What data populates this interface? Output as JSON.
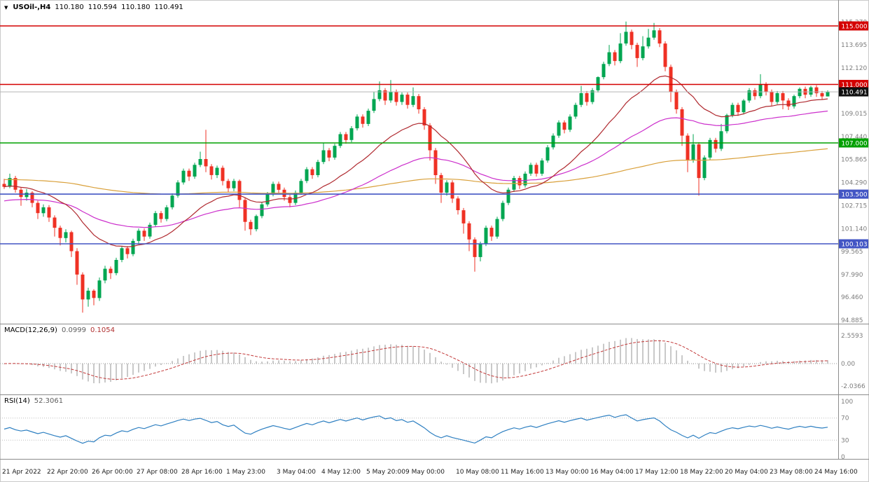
{
  "chart_data": {
    "type": "candlestick",
    "symbol": "USOil-",
    "timeframe": "H4",
    "quote": {
      "symbol_period": "USOil-,H4",
      "open": "110.180",
      "high": "110.594",
      "low": "110.180",
      "close": "110.491"
    },
    "bull_color": "#00a651",
    "bear_color": "#ef3124",
    "price_axis": {
      "labels": [
        115.27,
        113.695,
        112.12,
        110.545,
        109.015,
        107.44,
        105.865,
        104.29,
        102.715,
        101.14,
        99.565,
        97.99,
        96.46,
        94.885
      ]
    },
    "time_axis": {
      "labels": [
        {
          "t": "21 Apr 2022",
          "i": 0
        },
        {
          "t": "22 Apr 20:00",
          "i": 8
        },
        {
          "t": "26 Apr 00:00",
          "i": 16
        },
        {
          "t": "27 Apr 08:00",
          "i": 24
        },
        {
          "t": "28 Apr 16:00",
          "i": 32
        },
        {
          "t": "1 May 23:00",
          "i": 40
        },
        {
          "t": "3 May 04:00",
          "i": 49
        },
        {
          "t": "4 May 12:00",
          "i": 57
        },
        {
          "t": "5 May 20:00",
          "i": 65
        },
        {
          "t": "9 May 00:00",
          "i": 72
        },
        {
          "t": "10 May 08:00",
          "i": 81
        },
        {
          "t": "11 May 16:00",
          "i": 89
        },
        {
          "t": "13 May 00:00",
          "i": 97
        },
        {
          "t": "16 May 04:00",
          "i": 105
        },
        {
          "t": "17 May 12:00",
          "i": 113
        },
        {
          "t": "18 May 22:00",
          "i": 121
        },
        {
          "t": "20 May 04:00",
          "i": 129
        },
        {
          "t": "23 May 08:00",
          "i": 137
        },
        {
          "t": "24 May 16:00",
          "i": 145
        }
      ]
    },
    "levels": [
      {
        "value": 115.0,
        "label": "115.000",
        "color": "#d40000"
      },
      {
        "value": 111.0,
        "label": "111.000",
        "color": "#d40000"
      },
      {
        "value": 107.0,
        "label": "107.000",
        "color": "#00a000"
      },
      {
        "value": 103.5,
        "label": "103.500",
        "color": "#4255c4"
      },
      {
        "value": 100.103,
        "label": "100.103",
        "color": "#4255c4"
      }
    ],
    "current_price": {
      "value": 110.491,
      "label": "110.491",
      "badge_color": "#101010"
    },
    "moving_averages": [
      {
        "name": "ma-slow",
        "method": "ema",
        "period": 200,
        "seed": 104.5,
        "color": "#d9a03a"
      },
      {
        "name": "ma-medium",
        "method": "ema",
        "period": 55,
        "seed": 103.0,
        "color": "#cc2fcc"
      },
      {
        "name": "ma-fast",
        "method": "ema",
        "period": 21,
        "seed": 104.0,
        "color": "#b02a30"
      }
    ],
    "candles": [
      [
        104.2,
        104.55,
        103.85,
        104.0
      ],
      [
        104.0,
        104.9,
        103.9,
        104.6
      ],
      [
        104.6,
        104.75,
        103.6,
        103.8
      ],
      [
        103.8,
        103.95,
        102.7,
        103.3
      ],
      [
        103.3,
        103.85,
        103.05,
        103.6
      ],
      [
        103.6,
        103.7,
        102.6,
        102.9
      ],
      [
        102.9,
        103.05,
        101.8,
        102.2
      ],
      [
        102.2,
        102.8,
        101.95,
        102.6
      ],
      [
        102.6,
        102.75,
        101.6,
        101.9
      ],
      [
        101.9,
        102.05,
        100.6,
        101.2
      ],
      [
        101.2,
        101.35,
        100.0,
        100.5
      ],
      [
        100.5,
        101.1,
        100.2,
        100.9
      ],
      [
        100.9,
        101.0,
        99.2,
        99.6
      ],
      [
        99.6,
        99.8,
        97.3,
        98.0
      ],
      [
        98.0,
        98.15,
        95.4,
        96.3
      ],
      [
        96.3,
        97.1,
        95.8,
        96.9
      ],
      [
        96.9,
        97.0,
        95.9,
        96.4
      ],
      [
        96.4,
        97.8,
        96.2,
        97.6
      ],
      [
        97.6,
        98.6,
        97.4,
        98.4
      ],
      [
        98.4,
        98.55,
        97.7,
        98.1
      ],
      [
        98.1,
        99.15,
        97.95,
        99.0
      ],
      [
        99.0,
        99.95,
        98.85,
        99.8
      ],
      [
        99.8,
        99.95,
        99.1,
        99.4
      ],
      [
        99.4,
        100.45,
        99.25,
        100.3
      ],
      [
        100.3,
        101.15,
        100.1,
        101.0
      ],
      [
        101.0,
        101.15,
        100.3,
        100.6
      ],
      [
        100.6,
        101.55,
        100.45,
        101.4
      ],
      [
        101.4,
        102.35,
        101.25,
        102.2
      ],
      [
        102.2,
        102.35,
        101.55,
        101.8
      ],
      [
        101.8,
        102.75,
        101.65,
        102.6
      ],
      [
        102.6,
        103.55,
        102.45,
        103.4
      ],
      [
        103.4,
        104.45,
        103.25,
        104.3
      ],
      [
        104.3,
        105.25,
        104.15,
        105.1
      ],
      [
        105.1,
        105.25,
        104.4,
        104.7
      ],
      [
        104.7,
        105.65,
        104.55,
        105.5
      ],
      [
        105.5,
        106.4,
        105.35,
        105.9
      ],
      [
        105.9,
        107.9,
        105.0,
        105.4
      ],
      [
        105.4,
        105.55,
        104.5,
        104.8
      ],
      [
        104.8,
        105.45,
        104.6,
        105.3
      ],
      [
        105.3,
        105.45,
        104.1,
        104.4
      ],
      [
        104.4,
        104.55,
        103.6,
        103.9
      ],
      [
        103.9,
        104.55,
        103.7,
        104.4
      ],
      [
        104.4,
        104.5,
        102.6,
        103.1
      ],
      [
        103.1,
        103.25,
        101.0,
        101.6
      ],
      [
        101.6,
        101.75,
        100.7,
        101.1
      ],
      [
        101.1,
        102.1,
        100.95,
        102.0
      ],
      [
        102.0,
        102.95,
        101.85,
        102.8
      ],
      [
        102.8,
        103.65,
        102.65,
        103.5
      ],
      [
        103.5,
        104.35,
        103.35,
        104.2
      ],
      [
        104.2,
        104.35,
        103.55,
        103.8
      ],
      [
        103.8,
        103.95,
        103.05,
        103.3
      ],
      [
        103.3,
        103.45,
        102.6,
        102.9
      ],
      [
        102.9,
        103.75,
        102.75,
        103.6
      ],
      [
        103.6,
        104.55,
        103.45,
        104.4
      ],
      [
        104.4,
        105.35,
        104.25,
        105.2
      ],
      [
        105.2,
        105.35,
        104.55,
        104.8
      ],
      [
        104.8,
        105.85,
        104.65,
        105.7
      ],
      [
        105.7,
        107.0,
        105.55,
        106.5
      ],
      [
        106.5,
        106.65,
        105.75,
        106.0
      ],
      [
        106.0,
        106.95,
        105.85,
        106.8
      ],
      [
        106.8,
        107.75,
        106.65,
        107.6
      ],
      [
        107.6,
        107.75,
        106.95,
        107.2
      ],
      [
        107.2,
        108.15,
        107.05,
        108.0
      ],
      [
        108.0,
        108.95,
        107.85,
        108.8
      ],
      [
        108.8,
        108.95,
        108.05,
        108.3
      ],
      [
        108.3,
        109.35,
        108.15,
        109.2
      ],
      [
        109.2,
        110.5,
        109.05,
        110.0
      ],
      [
        110.0,
        111.2,
        109.85,
        110.6
      ],
      [
        110.6,
        110.75,
        109.6,
        109.9
      ],
      [
        109.9,
        111.3,
        109.75,
        110.5
      ],
      [
        110.5,
        110.65,
        109.55,
        109.8
      ],
      [
        109.8,
        110.45,
        109.6,
        110.3
      ],
      [
        110.3,
        110.45,
        109.35,
        109.6
      ],
      [
        109.6,
        110.8,
        109.45,
        110.2
      ],
      [
        110.2,
        110.35,
        109.0,
        109.3
      ],
      [
        109.3,
        109.45,
        107.9,
        108.2
      ],
      [
        108.2,
        108.35,
        105.8,
        106.5
      ],
      [
        106.5,
        106.65,
        104.2,
        104.8
      ],
      [
        104.8,
        104.95,
        102.9,
        103.6
      ],
      [
        103.6,
        104.45,
        103.4,
        104.3
      ],
      [
        104.3,
        104.45,
        102.9,
        103.2
      ],
      [
        103.2,
        103.35,
        102.1,
        102.4
      ],
      [
        102.4,
        102.55,
        100.8,
        101.5
      ],
      [
        101.5,
        101.65,
        99.6,
        100.4
      ],
      [
        100.4,
        100.55,
        98.2,
        99.2
      ],
      [
        99.2,
        100.25,
        98.9,
        100.1
      ],
      [
        100.1,
        101.35,
        99.95,
        101.2
      ],
      [
        101.2,
        101.35,
        100.3,
        100.6
      ],
      [
        100.6,
        101.95,
        100.45,
        101.8
      ],
      [
        101.8,
        103.05,
        101.65,
        102.9
      ],
      [
        102.9,
        103.95,
        102.75,
        103.8
      ],
      [
        103.8,
        104.75,
        103.65,
        104.6
      ],
      [
        104.6,
        104.75,
        103.85,
        104.1
      ],
      [
        104.1,
        105.05,
        103.95,
        104.9
      ],
      [
        104.9,
        105.65,
        104.75,
        105.5
      ],
      [
        105.5,
        105.65,
        104.7,
        104.9
      ],
      [
        104.9,
        105.95,
        104.75,
        105.8
      ],
      [
        105.8,
        106.85,
        105.65,
        106.7
      ],
      [
        106.7,
        107.65,
        106.55,
        107.5
      ],
      [
        107.5,
        108.55,
        107.35,
        108.4
      ],
      [
        108.4,
        108.55,
        107.65,
        107.9
      ],
      [
        107.9,
        108.95,
        107.75,
        108.8
      ],
      [
        108.8,
        109.75,
        108.65,
        109.6
      ],
      [
        109.6,
        110.9,
        109.45,
        110.4
      ],
      [
        110.4,
        110.55,
        109.55,
        109.8
      ],
      [
        109.8,
        110.75,
        109.65,
        110.6
      ],
      [
        110.6,
        111.55,
        110.45,
        111.5
      ],
      [
        111.5,
        112.55,
        111.35,
        112.4
      ],
      [
        112.4,
        113.7,
        112.25,
        113.2
      ],
      [
        113.2,
        113.35,
        112.3,
        112.6
      ],
      [
        112.6,
        114.5,
        112.45,
        113.8
      ],
      [
        113.8,
        115.3,
        113.65,
        114.6
      ],
      [
        114.6,
        114.75,
        113.4,
        113.7
      ],
      [
        113.7,
        113.85,
        112.2,
        112.8
      ],
      [
        112.8,
        114.3,
        112.65,
        113.6
      ],
      [
        113.6,
        114.8,
        113.45,
        114.2
      ],
      [
        114.2,
        115.2,
        114.05,
        114.7
      ],
      [
        114.7,
        114.85,
        113.55,
        113.8
      ],
      [
        113.8,
        113.95,
        111.9,
        112.2
      ],
      [
        112.2,
        112.35,
        109.8,
        110.5
      ],
      [
        110.5,
        110.65,
        109.0,
        109.3
      ],
      [
        109.3,
        109.45,
        106.8,
        107.5
      ],
      [
        107.5,
        107.65,
        105.0,
        105.8
      ],
      [
        105.8,
        107.6,
        105.65,
        106.9
      ],
      [
        106.9,
        107.05,
        103.4,
        104.6
      ],
      [
        104.6,
        106.15,
        104.45,
        106.0
      ],
      [
        106.0,
        107.35,
        105.85,
        107.2
      ],
      [
        107.2,
        107.35,
        106.35,
        106.6
      ],
      [
        106.6,
        108.3,
        106.45,
        107.8
      ],
      [
        107.8,
        109.0,
        107.65,
        108.9
      ],
      [
        108.9,
        109.75,
        108.75,
        109.6
      ],
      [
        109.6,
        109.75,
        108.85,
        109.1
      ],
      [
        109.1,
        110.0,
        108.95,
        109.9
      ],
      [
        109.9,
        110.75,
        109.75,
        110.6
      ],
      [
        110.6,
        110.75,
        109.95,
        110.2
      ],
      [
        110.2,
        111.7,
        110.05,
        111.0
      ],
      [
        111.0,
        111.15,
        110.25,
        110.5
      ],
      [
        110.5,
        110.65,
        109.55,
        109.8
      ],
      [
        109.8,
        110.55,
        109.65,
        110.4
      ],
      [
        110.4,
        110.55,
        109.3,
        109.9
      ],
      [
        109.9,
        110.05,
        109.25,
        109.5
      ],
      [
        109.5,
        110.3,
        109.35,
        110.2
      ],
      [
        110.2,
        110.8,
        110.05,
        110.7
      ],
      [
        110.7,
        110.85,
        110.05,
        110.3
      ],
      [
        110.3,
        110.9,
        110.15,
        110.8
      ],
      [
        110.8,
        110.95,
        110.15,
        110.4
      ],
      [
        110.4,
        110.55,
        109.95,
        110.18
      ],
      [
        110.18,
        110.594,
        110.18,
        110.491
      ]
    ],
    "indicators": {
      "macd": {
        "title": "MACD(12,26,9)",
        "fast": 12,
        "slow": 26,
        "signal_period": 9,
        "value": "0.0999",
        "signal": "0.1054",
        "axis_labels": [
          {
            "v": 2.5593,
            "t": "2.5593"
          },
          {
            "v": 0,
            "t": "0.00"
          },
          {
            "v": -2.0366,
            "t": "-2.0366"
          }
        ],
        "histogram_color": "#c9c9c9",
        "signal_color": "#c33a3a"
      },
      "rsi": {
        "title": "RSI(14)",
        "period": 14,
        "value": "52.3061",
        "axis_labels": [
          {
            "v": 100,
            "t": "100"
          },
          {
            "v": 70,
            "t": "70"
          },
          {
            "v": 30,
            "t": "30"
          },
          {
            "v": 0,
            "t": "0"
          }
        ],
        "levels": [
          70,
          30
        ],
        "line_color": "#2d7fc1"
      }
    }
  }
}
